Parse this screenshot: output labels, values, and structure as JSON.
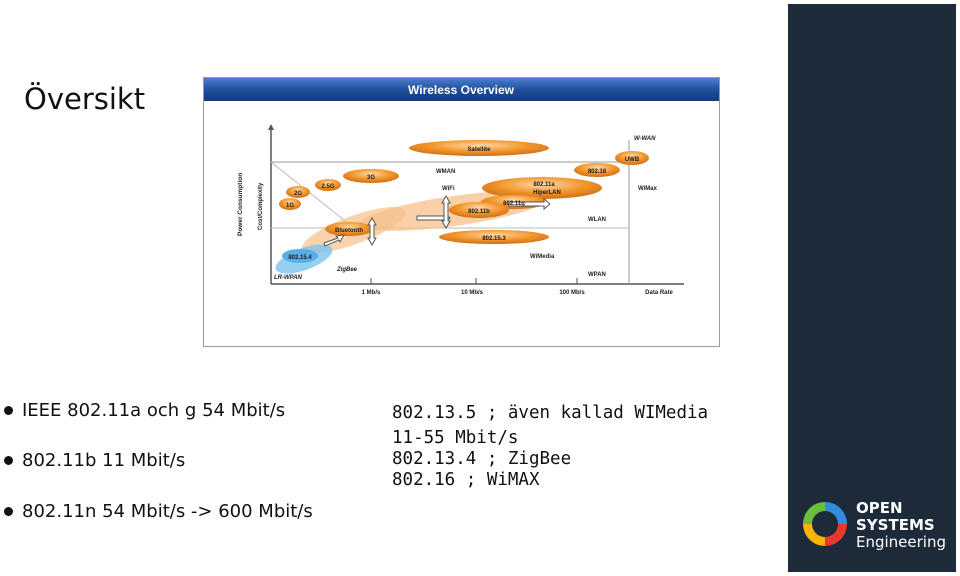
{
  "slide": {
    "title": "Översikt"
  },
  "figure": {
    "header": "Wireless Overview",
    "y_axis_outer": "Power Consumption",
    "y_axis_inner": "Cost/Complexity",
    "x_ticks": [
      "1 Mb/s",
      "10 Mb/s",
      "100 Mb/s",
      "Data Rate"
    ],
    "zones": [
      "W-WAN",
      "WMAN",
      "WLAN",
      "WPAN",
      "LR-WPAN",
      "WiMax",
      "WiFi",
      "WiMedia"
    ],
    "bubbles": [
      "Satellite",
      "UWB",
      "802.16",
      "3G",
      "2.5G",
      "2G",
      "1G",
      "802.11a",
      "HiperLAN",
      "802.11g",
      "802.11b",
      "Bluetooth",
      "802.15.3",
      "802.15.4",
      "ZigBee"
    ]
  },
  "bullets": [
    "IEEE 802.11a och g 54 Mbit/s",
    "802.11b 11 Mbit/s",
    "802.11n 54 Mbit/s -> 600 Mbit/s"
  ],
  "notes": [
    "802.13.5 ; även kallad WIMedia",
    "11-55 Mbit/s",
    "802.13.4 ; ZigBee",
    "802.16 ; WiMAX"
  ],
  "logo": {
    "line1": "OPEN",
    "line2": "SYSTEMS",
    "line3": "Engineering"
  },
  "colors": {
    "side_panel": "#1c2a3a",
    "header_bar": "#1f4f9e",
    "bubble_orange": "#f2962a",
    "bubble_light": "#f7c08a",
    "wpan_blue": "#7cc4ee"
  }
}
